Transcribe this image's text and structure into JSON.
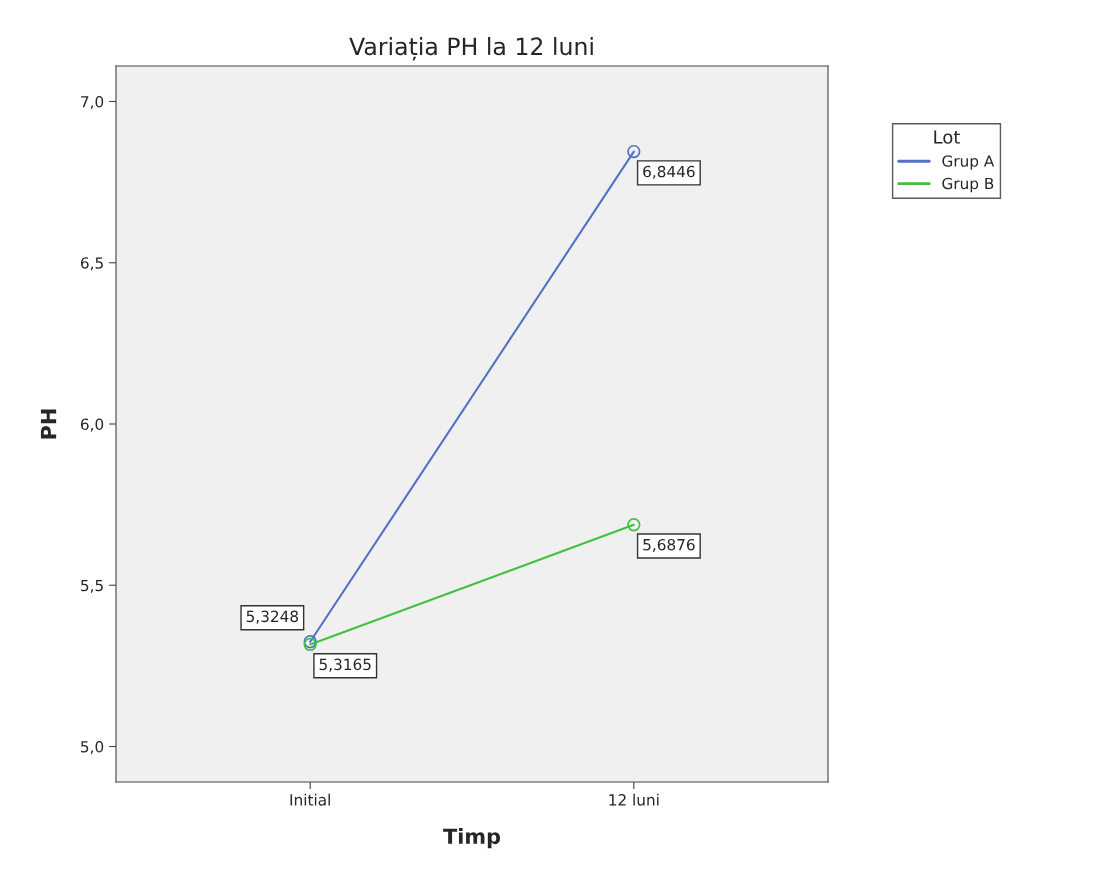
{
  "chart_data": {
    "type": "line",
    "title": "Variația PH la 12 luni",
    "xlabel": "Timp",
    "ylabel": "PH",
    "legend_title": "Lot",
    "categories": [
      "Initial",
      "12 luni"
    ],
    "series": [
      {
        "name": "Grup A",
        "color": "#5470c6",
        "values": [
          5.3248,
          6.8446
        ],
        "value_labels": [
          "5,3248",
          "6,8446"
        ]
      },
      {
        "name": "Grup B",
        "color": "#40c040",
        "values": [
          5.3165,
          5.6876
        ],
        "value_labels": [
          "5,3165",
          "5,6876"
        ]
      }
    ],
    "ylim": [
      4.89,
      7.11
    ],
    "yticks": [
      {
        "value": 5.0,
        "label": "5,0"
      },
      {
        "value": 5.5,
        "label": "5,5"
      },
      {
        "value": 6.0,
        "label": "6,0"
      },
      {
        "value": 6.5,
        "label": "6,5"
      },
      {
        "value": 7.0,
        "label": "7,0"
      }
    ],
    "grid": false,
    "legend": "top right",
    "marker": "circle",
    "line_style": "solid"
  }
}
